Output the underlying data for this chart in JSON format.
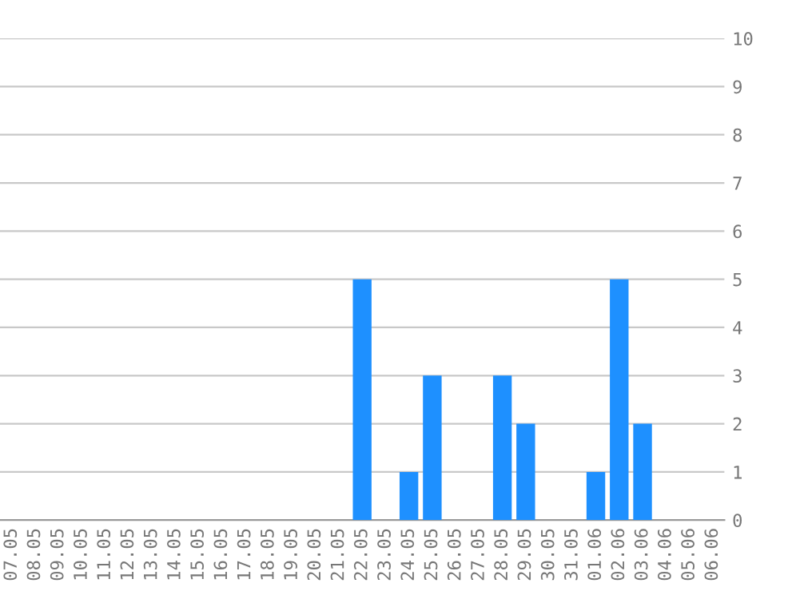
{
  "chart_data": {
    "type": "bar",
    "categories": [
      "07.05",
      "08.05",
      "09.05",
      "10.05",
      "11.05",
      "12.05",
      "13.05",
      "14.05",
      "15.05",
      "16.05",
      "17.05",
      "18.05",
      "19.05",
      "20.05",
      "21.05",
      "22.05",
      "23.05",
      "24.05",
      "25.05",
      "26.05",
      "27.05",
      "28.05",
      "29.05",
      "30.05",
      "31.05",
      "01.06",
      "02.06",
      "03.06",
      "04.06",
      "05.06",
      "06.06"
    ],
    "values": [
      0,
      0,
      0,
      0,
      0,
      0,
      0,
      0,
      0,
      0,
      0,
      0,
      0,
      0,
      0,
      5,
      0,
      1,
      3,
      0,
      0,
      3,
      2,
      0,
      0,
      1,
      5,
      2,
      0,
      0,
      0
    ],
    "color": "#1e90ff",
    "ylim": [
      0,
      10
    ],
    "yticks": [
      0,
      1,
      2,
      3,
      4,
      5,
      6,
      7,
      8,
      9,
      10
    ],
    "grid": "y"
  }
}
